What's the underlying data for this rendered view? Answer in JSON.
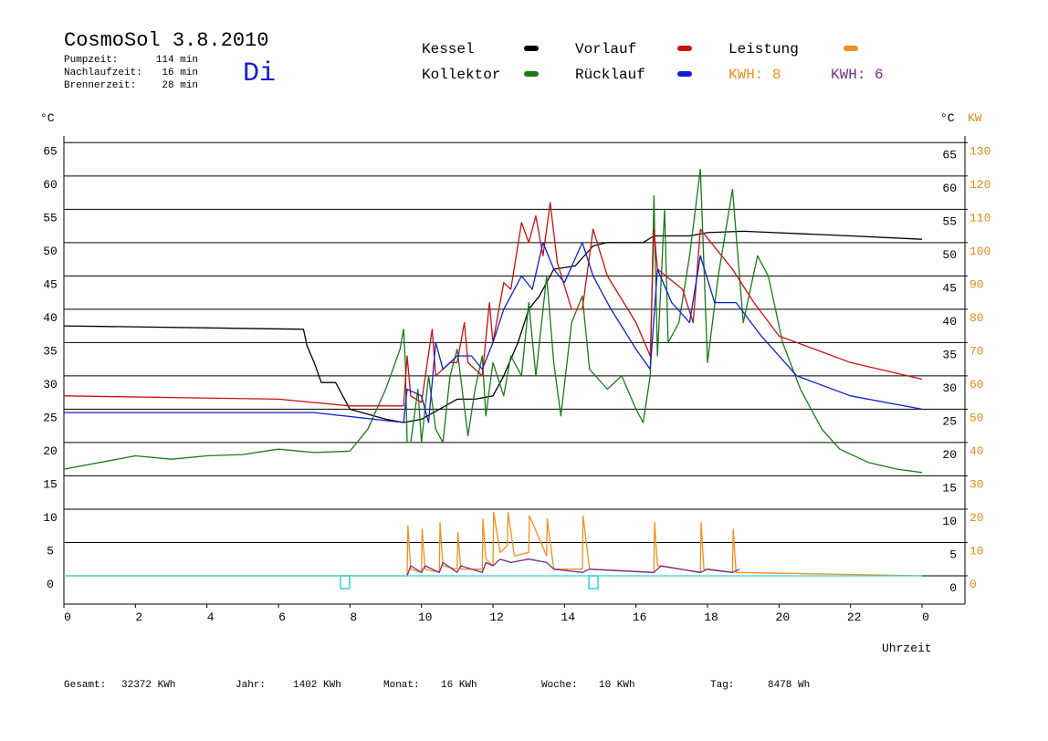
{
  "chart_data": {
    "type": "line",
    "title": "CosmoSol 3.8.2010",
    "day": "Di",
    "info": [
      {
        "label": "Pumpzeit:",
        "value": "114 min"
      },
      {
        "label": "Nachlaufzeit:",
        "value": "16 min"
      },
      {
        "label": "Brennerzeit:",
        "value": "28 min"
      }
    ],
    "annotations": [
      {
        "text": "KWH: 8",
        "color": "#f0901c"
      },
      {
        "text": "KWH: 6",
        "color": "#7a2a8a"
      }
    ],
    "ylabel": "°C",
    "y2label": "KW",
    "xlabel": "Uhrzeit",
    "totals": [
      {
        "label": "Gesamt:",
        "value": "32372 KWh"
      },
      {
        "label": "Jahr:",
        "value": "1402 KWh"
      },
      {
        "label": "Monat:",
        "value": "16 KWh"
      },
      {
        "label": "Woche:",
        "value": "10 KWh"
      },
      {
        "label": "Tag:",
        "value": "8478 Wh"
      }
    ],
    "xlim": [
      0,
      25.2
    ],
    "xticks": [
      0,
      2,
      4,
      6,
      8,
      10,
      12,
      14,
      16,
      18,
      20,
      22,
      {
        "value": 24,
        "label": "0"
      }
    ],
    "ylim": [
      -4.25,
      66
    ],
    "yticks": [
      0,
      5,
      10,
      15,
      20,
      25,
      30,
      35,
      40,
      45,
      50,
      55,
      60,
      65
    ],
    "y2lim": [
      -8.5,
      132
    ],
    "y2ticks": [
      0,
      10,
      20,
      30,
      40,
      50,
      60,
      70,
      80,
      90,
      100,
      110,
      120,
      130
    ],
    "grid": true,
    "series": [
      {
        "name": "Kessel",
        "color": "#000000",
        "x": [
          0,
          6.7,
          6.8,
          7.0,
          7.2,
          7.6,
          7.8,
          8.0,
          9.0,
          9.5,
          10.0,
          10.5,
          11,
          11.5,
          12,
          12.3,
          12.7,
          13,
          13.3,
          13.7,
          14.3,
          14.8,
          15.2,
          16.2,
          16.5,
          17.5,
          18,
          19,
          22,
          24
        ],
        "values": [
          37.5,
          37.0,
          34.5,
          32,
          29,
          29,
          27,
          25,
          23.5,
          23,
          23.5,
          25,
          26.5,
          26.5,
          27,
          30,
          35,
          40,
          42,
          46,
          46.5,
          49.5,
          50,
          50,
          51,
          51,
          51.5,
          51.7,
          51,
          50.5
        ]
      },
      {
        "name": "Kollektor",
        "color": "#1a7a1a",
        "x": [
          0,
          1,
          2,
          3,
          4,
          5,
          6,
          7,
          8,
          8.5,
          9,
          9.4,
          9.5,
          9.55,
          9.6,
          9.7,
          9.9,
          10,
          10.2,
          10.4,
          10.6,
          10.8,
          11,
          11.3,
          11.5,
          11.7,
          11.8,
          12,
          12.3,
          12.5,
          12.8,
          13.0,
          13.2,
          13.5,
          13.7,
          13.9,
          14.2,
          14.5,
          14.7,
          15.2,
          15.6,
          16,
          16.2,
          16.4,
          16.5,
          16.6,
          16.8,
          16.9,
          17.2,
          17.5,
          17.8,
          18,
          18.3,
          18.7,
          19,
          19.4,
          19.7,
          20.1,
          20.6,
          21.2,
          21.7,
          22.5,
          23.3,
          24
        ],
        "values": [
          16,
          17,
          18,
          17.5,
          18,
          18.2,
          19,
          18.5,
          18.7,
          22,
          28,
          34,
          37,
          32,
          20,
          20,
          28,
          20,
          30,
          22,
          20,
          30,
          34,
          21,
          28,
          33,
          24,
          32,
          27,
          33,
          30,
          41,
          30,
          45,
          32,
          24,
          38,
          42,
          31,
          28,
          30,
          25,
          23,
          30,
          57,
          33,
          55,
          35,
          38,
          48,
          61,
          32,
          45,
          58,
          38,
          48,
          45,
          35,
          28,
          22,
          19,
          17,
          16,
          15.5
        ]
      },
      {
        "name": "Vorlauf",
        "color": "#cc1010",
        "x": [
          0,
          6,
          8,
          9.5,
          9.6,
          9.7,
          10,
          10.3,
          10.4,
          10.8,
          11,
          11.2,
          11.3,
          11.7,
          11.9,
          12.0,
          12.3,
          12.5,
          12.8,
          13.0,
          13.2,
          13.4,
          13.6,
          13.8,
          14.2,
          14.5,
          14.8,
          15.2,
          16,
          16.4,
          16.5,
          16.6,
          17.3,
          17.6,
          17.8,
          18.1,
          18.7,
          19.3,
          20,
          22,
          24
        ],
        "values": [
          27,
          26.5,
          25.5,
          25.5,
          33,
          27,
          26,
          37,
          30,
          32,
          32,
          38,
          32,
          30,
          41,
          35,
          44,
          43,
          53,
          50,
          54,
          48,
          56,
          47,
          40,
          40,
          52,
          45,
          38,
          33,
          52,
          46,
          43,
          38,
          52,
          50,
          46,
          41,
          36,
          32,
          29.5
        ]
      },
      {
        "name": "Rücklauf",
        "color": "#1020cc",
        "x": [
          0,
          7,
          9.5,
          9.6,
          10,
          10.2,
          10.4,
          10.6,
          11,
          11.4,
          11.7,
          12,
          12.3,
          12.8,
          13.1,
          13.4,
          13.7,
          14,
          14.5,
          14.8,
          15.3,
          16,
          16.4,
          16.6,
          17,
          17.5,
          17.8,
          18.2,
          18.8,
          19.5,
          20.5,
          22,
          24
        ],
        "values": [
          24.5,
          24.5,
          23,
          28,
          27,
          23,
          35,
          31,
          33,
          33,
          31,
          35,
          40,
          45,
          43,
          50,
          46,
          44,
          50,
          45,
          40,
          34,
          31,
          46,
          41,
          38,
          48,
          41,
          41,
          36,
          30,
          27,
          25
        ]
      },
      {
        "name": "Leistung",
        "color": "#f0901c",
        "axis": "y2",
        "x": [
          0,
          9.6,
          9.62,
          9.7,
          10,
          10.02,
          10.1,
          10.5,
          10.52,
          10.6,
          11,
          11.02,
          11.1,
          11.7,
          11.72,
          11.8,
          12,
          12.02,
          12.2,
          12.4,
          12.42,
          12.6,
          13,
          13.02,
          13.5,
          13.52,
          13.7,
          14.5,
          14.52,
          14.7,
          16.5,
          16.52,
          16.6,
          17.8,
          17.82,
          17.9,
          18.7,
          18.72,
          18.8,
          24
        ],
        "values": [
          0,
          0,
          15,
          2,
          1,
          14,
          2,
          1,
          16,
          3,
          2,
          13,
          2,
          2,
          17,
          5,
          3,
          19,
          7,
          9,
          19,
          6,
          7,
          18,
          6,
          17,
          2,
          2,
          18,
          2,
          1,
          16,
          3,
          1,
          16,
          2,
          1,
          14,
          1,
          0
        ]
      },
      {
        "color": "#7a2a8a",
        "axis": "y2",
        "x": [
          9.6,
          9.7,
          10,
          10.1,
          10.5,
          10.6,
          11,
          11.1,
          11.7,
          11.8,
          12,
          12.2,
          12.5,
          13,
          13.5,
          13.7,
          14.5,
          14.7,
          16.5,
          16.7,
          17.8,
          18,
          18.7,
          18.9
        ],
        "values": [
          0,
          3,
          1,
          3,
          1,
          4,
          1,
          3,
          1,
          4,
          3,
          5,
          4,
          5,
          4,
          2,
          1,
          2,
          1,
          3,
          1,
          2,
          1,
          2
        ]
      },
      {
        "color": "#30d0e0",
        "x": [
          0,
          24
        ],
        "values": [
          0,
          0
        ]
      }
    ]
  }
}
